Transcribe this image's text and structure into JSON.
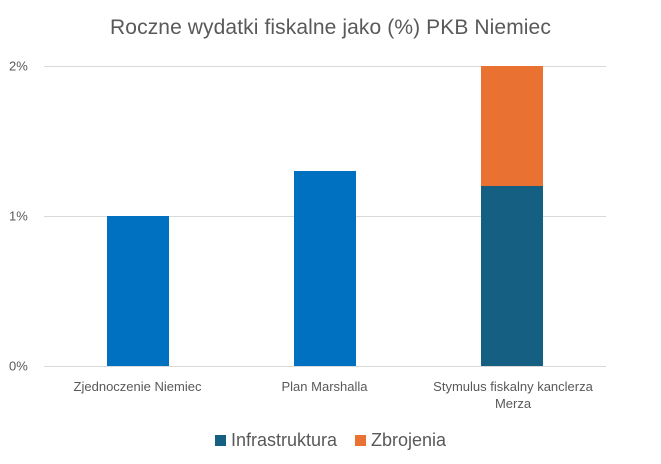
{
  "chart_data": {
    "type": "bar",
    "stacked": true,
    "title": "Roczne wydatki fiskalne jako (%) PKB Niemiec",
    "xlabel": "",
    "ylabel": "",
    "ylim": [
      0,
      2
    ],
    "yticks": [
      "0%",
      "1%",
      "2%"
    ],
    "grid": true,
    "legend_position": "bottom",
    "categories": [
      "Zjednoczenie Niemiec",
      "Plan Marshalla",
      "Stymulus fiskalny kanclerza Merza"
    ],
    "series": [
      {
        "name": "Total (single bar)",
        "values": [
          1.0,
          1.3,
          null
        ],
        "color": "#0070C0",
        "in_legend": false
      },
      {
        "name": "Infrastruktura",
        "values": [
          null,
          null,
          1.2
        ],
        "color": "#156082"
      },
      {
        "name": "Zbrojenia",
        "values": [
          null,
          null,
          0.8
        ],
        "color": "#E97132"
      }
    ]
  },
  "title": "Roczne wydatki fiskalne jako (%) PKB Niemiec",
  "axis": {
    "y_ticks": [
      {
        "label": "2%",
        "value": 2
      },
      {
        "label": "1%",
        "value": 1
      },
      {
        "label": "0%",
        "value": 0
      }
    ]
  },
  "categories": [
    {
      "label": "Zjednoczenie Niemiec"
    },
    {
      "label": "Plan Marshalla"
    },
    {
      "label": "Stymulus fiskalny kanclerza Merza"
    }
  ],
  "legend": [
    {
      "label": "Infrastruktura",
      "color": "#156082"
    },
    {
      "label": "Zbrojenia",
      "color": "#E97132"
    }
  ],
  "colors": {
    "single_bar": "#0070C0",
    "infrastruktura": "#156082",
    "zbrojenia": "#E97132",
    "grid": "#D9D9D9",
    "text": "#595959"
  }
}
